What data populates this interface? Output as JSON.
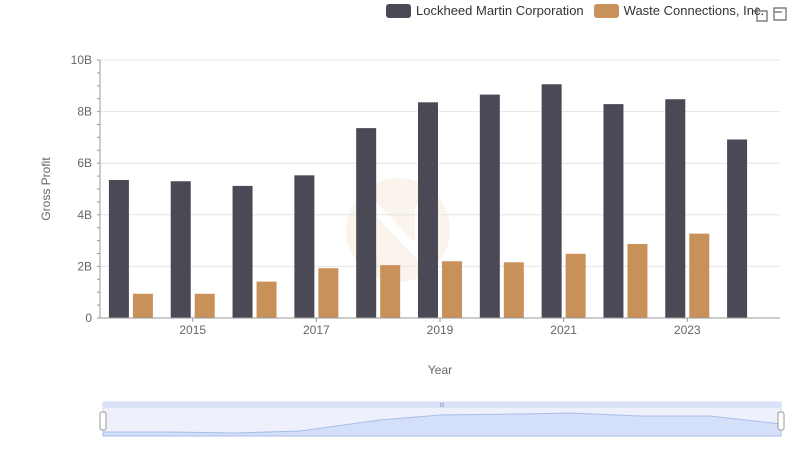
{
  "legend": {
    "series": [
      {
        "label": "Lockheed Martin Corporation",
        "color": "#4a4955"
      },
      {
        "label": "Waste Connections, Inc.",
        "color": "#c8915a"
      }
    ]
  },
  "toolbox": {
    "icons": [
      "zoom-icon",
      "restore-icon"
    ]
  },
  "chart_data": {
    "type": "bar",
    "categories": [
      "2014",
      "2015",
      "2016",
      "2017",
      "2018",
      "2019",
      "2020",
      "2021",
      "2022",
      "2023",
      "2024"
    ],
    "x_tick_labels": [
      "2015",
      "2017",
      "2019",
      "2021",
      "2023"
    ],
    "series": [
      {
        "name": "Lockheed Martin Corporation",
        "color": "#4a4955",
        "values": [
          5.35,
          5.3,
          5.12,
          5.53,
          7.36,
          8.36,
          8.66,
          9.06,
          8.29,
          8.48,
          6.92
        ]
      },
      {
        "name": "Waste Connections, Inc.",
        "color": "#c8915a",
        "values": [
          0.94,
          0.94,
          1.41,
          1.93,
          2.05,
          2.2,
          2.16,
          2.49,
          2.87,
          3.27,
          null
        ]
      }
    ],
    "xlabel": "Year",
    "ylabel": "Gross Profit",
    "ylim": [
      0,
      10
    ],
    "y_ticks": [
      "0",
      "2B",
      "4B",
      "6B",
      "8B",
      "10B"
    ],
    "grid": true,
    "legend_position": "top-right",
    "data_zoom": {
      "visible": true,
      "handle_label": "III"
    }
  }
}
